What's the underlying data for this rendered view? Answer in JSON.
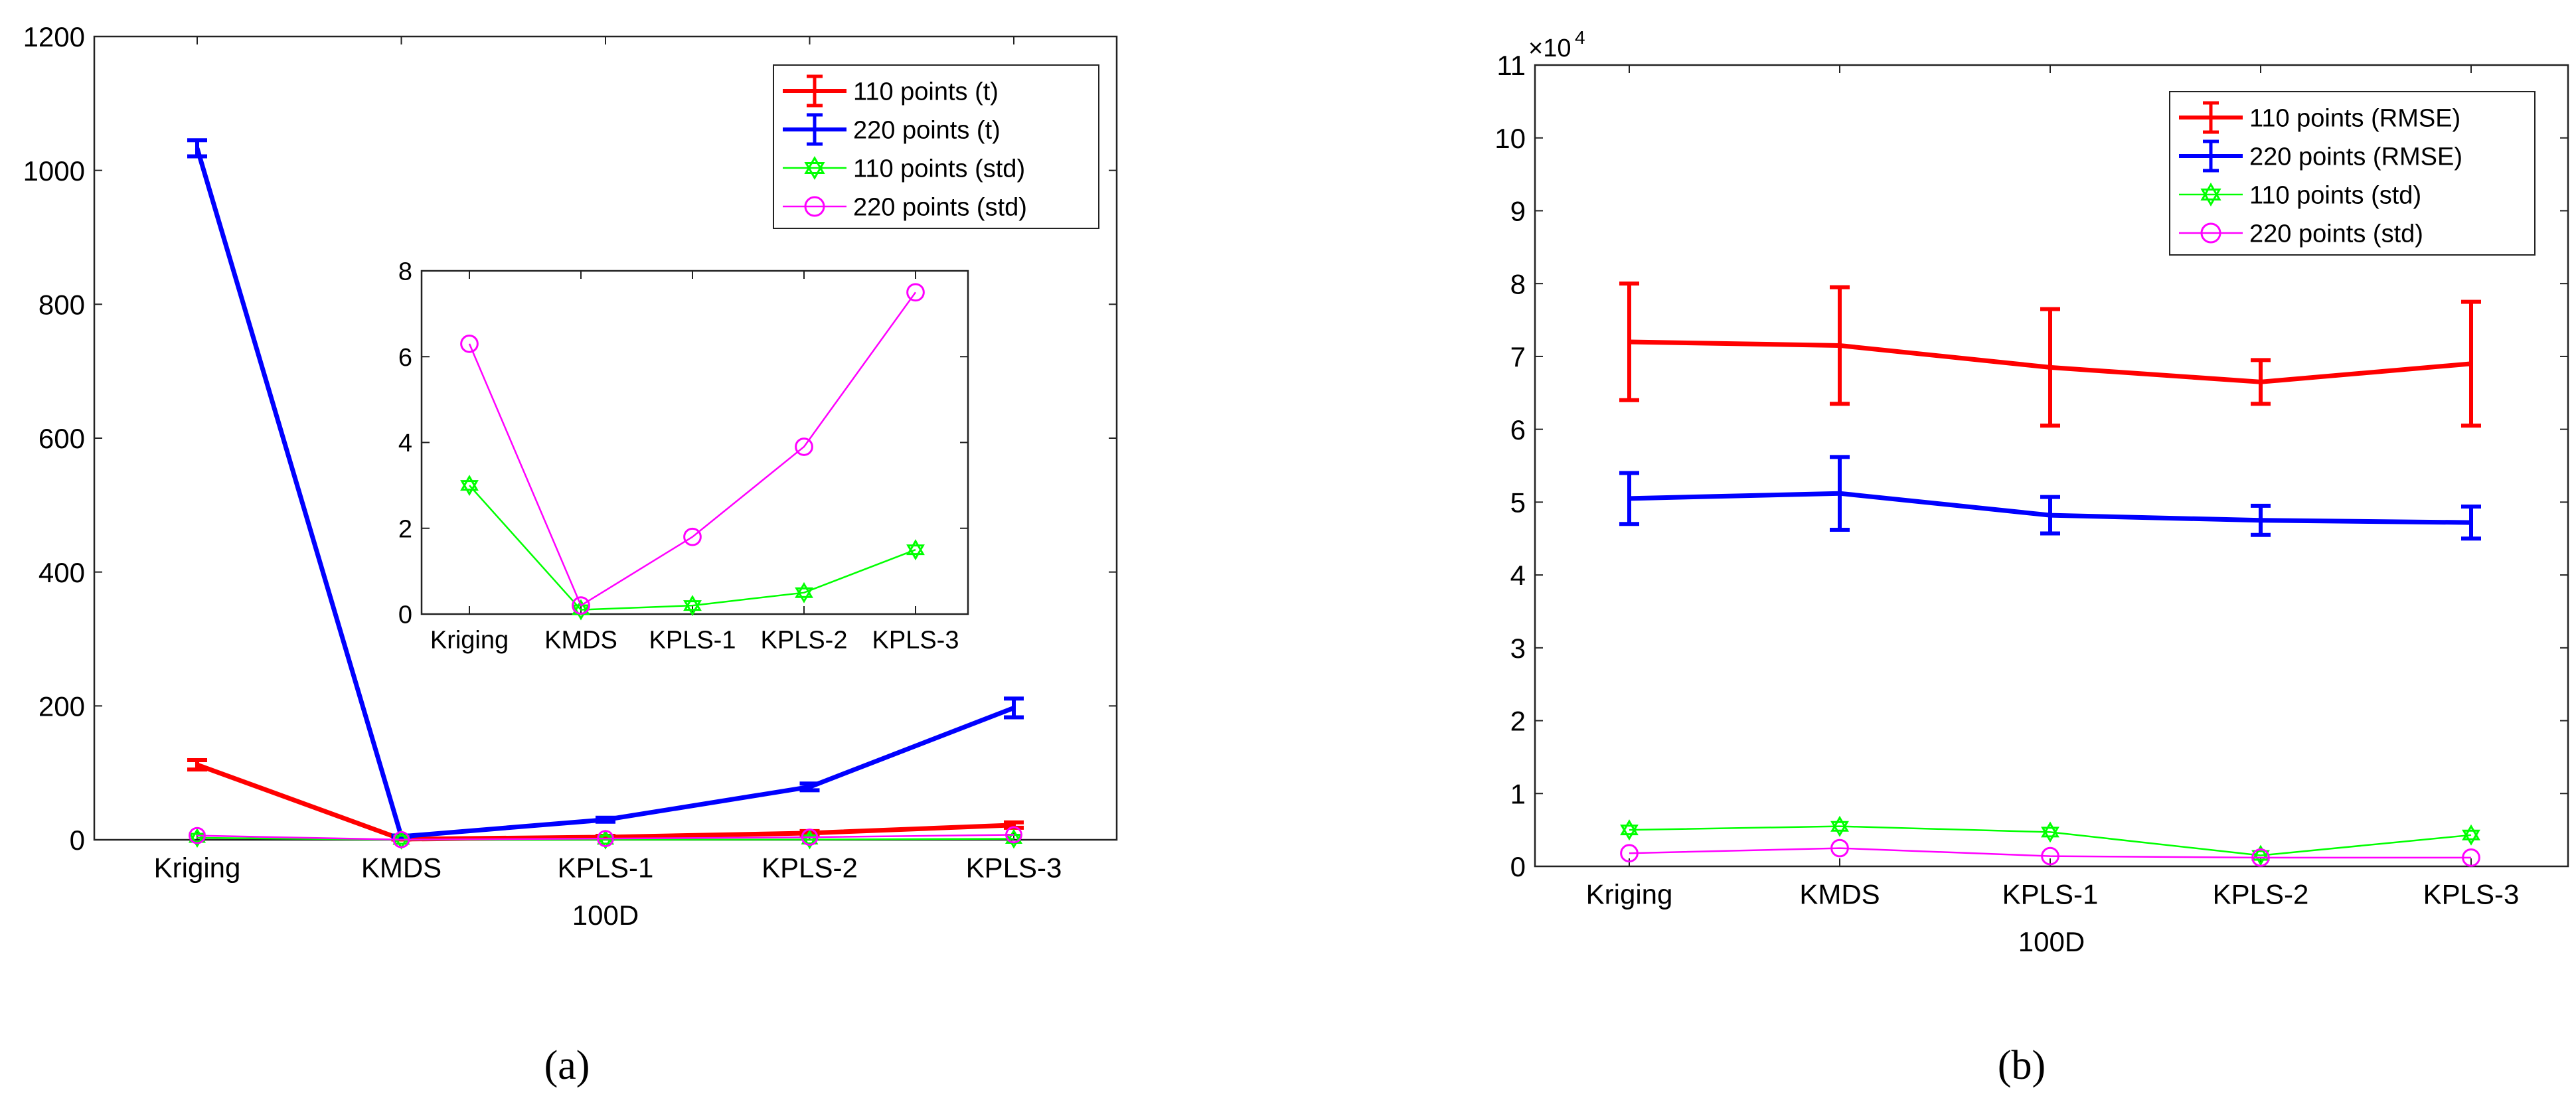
{
  "captions": {
    "a": "(a)",
    "b": "(b)"
  },
  "colors": {
    "t110": "#ff0000",
    "t220": "#0000ff",
    "std110": "#00ff00",
    "std220": "#ff00ff"
  },
  "chart_data": [
    {
      "id": "a",
      "type": "line",
      "xlabel": "100D",
      "ylabel": "",
      "categories": [
        "Kriging",
        "KMDS",
        "KPLS-1",
        "KPLS-2",
        "KPLS-3"
      ],
      "ylim": [
        0,
        1200
      ],
      "yticks": [
        0,
        200,
        400,
        600,
        800,
        1000,
        1200
      ],
      "legend_position": "top-right",
      "series": [
        {
          "name": "110 points (t)",
          "color": "#ff0000",
          "style": "errorbar",
          "values": [
            112,
            1,
            4,
            10,
            22
          ],
          "errors": [
            7,
            0.5,
            2,
            3,
            4
          ]
        },
        {
          "name": "220 points (t)",
          "color": "#0000ff",
          "style": "errorbar",
          "values": [
            1033,
            5,
            30,
            79,
            197
          ],
          "errors": [
            12,
            1.5,
            3,
            5,
            14
          ]
        },
        {
          "name": "110 points (std)",
          "color": "#00ff00",
          "style": "hexagram",
          "values": [
            3.0,
            0.1,
            0.2,
            0.5,
            1.5
          ]
        },
        {
          "name": "220 points (std)",
          "color": "#ff00ff",
          "style": "circle",
          "values": [
            6.3,
            0.2,
            1.8,
            3.9,
            7.5
          ]
        }
      ],
      "inset": {
        "categories": [
          "Kriging",
          "KMDS",
          "KPLS-1",
          "KPLS-2",
          "KPLS-3"
        ],
        "ylim": [
          0,
          8
        ],
        "yticks": [
          0,
          2,
          4,
          6,
          8
        ],
        "series": [
          {
            "name": "110 points (std)",
            "color": "#00ff00",
            "style": "hexagram",
            "values": [
              3.0,
              0.1,
              0.2,
              0.5,
              1.5
            ]
          },
          {
            "name": "220 points (std)",
            "color": "#ff00ff",
            "style": "circle",
            "values": [
              6.3,
              0.2,
              1.8,
              3.9,
              7.5
            ]
          }
        ]
      }
    },
    {
      "id": "b",
      "type": "line",
      "xlabel": "100D",
      "ylabel": "",
      "exponent_label": "×10",
      "exponent_power": "4",
      "categories": [
        "Kriging",
        "KMDS",
        "KPLS-1",
        "KPLS-2",
        "KPLS-3"
      ],
      "ylim": [
        0,
        11
      ],
      "yticks": [
        0,
        1,
        2,
        3,
        4,
        5,
        6,
        7,
        8,
        9,
        10,
        11
      ],
      "legend_position": "top-right",
      "series": [
        {
          "name": "110 points (RMSE)",
          "color": "#ff0000",
          "style": "errorbar",
          "values": [
            7.2,
            7.15,
            6.85,
            6.65,
            6.9
          ],
          "errors": [
            0.8,
            0.8,
            0.8,
            0.3,
            0.85
          ]
        },
        {
          "name": "220 points (RMSE)",
          "color": "#0000ff",
          "style": "errorbar",
          "values": [
            5.05,
            5.12,
            4.82,
            4.75,
            4.72
          ],
          "errors": [
            0.35,
            0.5,
            0.25,
            0.2,
            0.22
          ]
        },
        {
          "name": "110 points (std)",
          "color": "#00ff00",
          "style": "hexagram",
          "values": [
            0.5,
            0.55,
            0.47,
            0.15,
            0.43
          ]
        },
        {
          "name": "220 points (std)",
          "color": "#ff00ff",
          "style": "circle",
          "values": [
            0.18,
            0.25,
            0.14,
            0.12,
            0.12
          ]
        }
      ]
    }
  ]
}
